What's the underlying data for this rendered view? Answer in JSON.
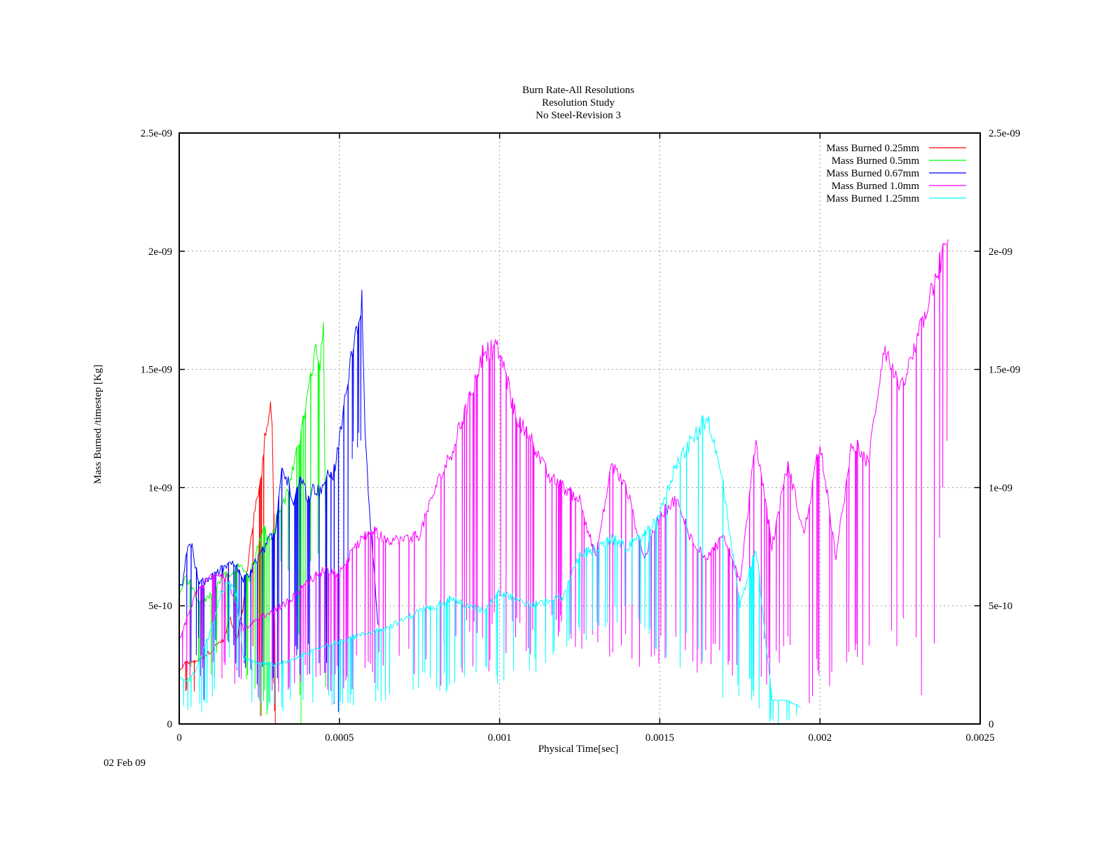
{
  "chart_data": {
    "type": "line",
    "title": [
      "Burn Rate-All Resolutions",
      "Resolution Study",
      "No Steel-Revision 3"
    ],
    "xlabel": "Physical Time[sec]",
    "ylabel": "Mass Burned /timestep  [Kg]",
    "ylabel_color": "#ff0000",
    "xlim": [
      0,
      0.0025
    ],
    "ylim": [
      0,
      2.5e-09
    ],
    "x_ticks": [
      "0",
      "0.0005",
      "0.001",
      "0.0015",
      "0.002",
      "0.0025"
    ],
    "y_ticks": [
      "0",
      "5e-10",
      "1e-09",
      "1.5e-09",
      "2e-09",
      "2.5e-09"
    ],
    "grid": true,
    "legend_position": "top-right",
    "series": [
      {
        "name": "Mass Burned 0.25mm",
        "color": "#ff0000",
        "x": [
          0,
          2e-05,
          4e-05,
          6e-05,
          8e-05,
          0.0001,
          0.00012,
          0.00014,
          0.00016,
          0.00018,
          0.0002,
          0.00022,
          0.00024,
          0.00026,
          0.00027,
          0.00028,
          0.000285,
          0.00029,
          0.000295,
          0.0003
        ],
        "y": [
          2.2e-10,
          2.6e-10,
          2.6e-10,
          2.7e-10,
          2.9e-10,
          3.1e-10,
          3.4e-10,
          3.6e-10,
          4.5e-10,
          3.6e-10,
          5e-10,
          7.5e-10,
          9.3e-10,
          1.1e-09,
          1.25e-09,
          1.3e-09,
          1.38e-09,
          1.25e-09,
          9e-10,
          0
        ],
        "spike_min": [
          3e-11,
          1.2e-10,
          1e-10,
          2e-10,
          2e-10,
          3e-10,
          3.2e-10,
          3.4e-10,
          3.6e-10,
          4e-10,
          5e-10,
          5e-10,
          0,
          0,
          0,
          0,
          0,
          0,
          0,
          0
        ]
      },
      {
        "name": "Mass Burned 0.5mm",
        "color": "#00ff00",
        "x": [
          0,
          2e-05,
          4e-05,
          6e-05,
          8e-05,
          0.0001,
          0.00012,
          0.00014,
          0.00016,
          0.00018,
          0.0002,
          0.00022,
          0.00024,
          0.00026,
          0.00028,
          0.0003,
          0.00032,
          0.00034,
          0.00036,
          0.00038,
          0.0004,
          0.00042,
          0.00043,
          0.00044,
          0.00045,
          0.00046
        ],
        "y": [
          5.4e-10,
          6.2e-10,
          5.8e-10,
          5.1e-10,
          5.2e-10,
          5.5e-10,
          5.9e-10,
          6.4e-10,
          6.2e-10,
          6.6e-10,
          6.6e-10,
          6.2e-10,
          7.3e-10,
          8.3e-10,
          7.8e-10,
          8.5e-10,
          9.3e-10,
          9.8e-10,
          1.1e-09,
          1.22e-09,
          1.38e-09,
          1.55e-09,
          1.6e-09,
          1.5e-09,
          1.75e-09,
          4e-10
        ],
        "spike_min": [
          1.5e-10,
          1e-10,
          1.5e-10,
          2e-10,
          3e-10,
          2e-10,
          3e-10,
          3e-10,
          3e-10,
          3.5e-10,
          2e-10,
          0,
          0,
          0,
          0,
          5e-10,
          7e-10,
          6e-10,
          5e-10,
          0,
          5e-10,
          6e-10,
          7e-10,
          5e-10,
          4e-10,
          0
        ]
      },
      {
        "name": "Mass Burned 0.67mm",
        "color": "#0000ff",
        "x": [
          0,
          1e-05,
          2e-05,
          3e-05,
          4e-05,
          6e-05,
          8e-05,
          0.0001,
          0.00012,
          0.00014,
          0.00016,
          0.00018,
          0.0002,
          0.00022,
          0.00024,
          0.00026,
          0.00028,
          0.0003,
          0.00032,
          0.00034,
          0.00036,
          0.00038,
          0.0004,
          0.00042,
          0.00044,
          0.00046,
          0.00048,
          0.0005,
          0.00052,
          0.00054,
          0.00055,
          0.00056,
          0.00057,
          0.00058,
          0.0006,
          0.00062
        ],
        "y": [
          5.8e-10,
          6e-10,
          6.9e-10,
          7.8e-10,
          7.5e-10,
          6e-10,
          6e-10,
          6.2e-10,
          6.4e-10,
          6.6e-10,
          6.8e-10,
          6.6e-10,
          6.1e-10,
          6.3e-10,
          6.9e-10,
          7.3e-10,
          7.8e-10,
          8.2e-10,
          1.08e-09,
          1.02e-09,
          9.4e-10,
          1.05e-09,
          9.6e-10,
          1e-09,
          9.8e-10,
          1.05e-09,
          1.05e-09,
          1.2e-09,
          1.4e-09,
          1.6e-09,
          1.65e-09,
          1.7e-09,
          1.82e-09,
          1.2e-09,
          8e-10,
          4.2e-10
        ],
        "spike_min": [
          4.5e-10,
          5e-10,
          4e-10,
          3.5e-10,
          1e-10,
          3e-10,
          4e-11,
          3e-10,
          3.5e-10,
          3.5e-10,
          3e-10,
          1.5e-10,
          2e-10,
          1e-10,
          1.5e-10,
          1.5e-10,
          1e-10,
          1e-10,
          1.5e-10,
          1.5e-10,
          2e-10,
          2e-10,
          2e-10,
          2e-10,
          2e-10,
          1e-10,
          5e-11,
          0,
          0,
          1.1e-09,
          1.2e-09,
          1.1e-09,
          1e-09,
          7e-10,
          5e-10,
          4e-10
        ]
      },
      {
        "name": "Mass Burned 1.0mm",
        "color": "#ff00ff",
        "x": [
          0,
          5e-05,
          0.0001,
          0.00015,
          0.0002,
          0.00025,
          0.0003,
          0.00035,
          0.0004,
          0.00045,
          0.0005,
          0.00055,
          0.0006,
          0.00065,
          0.0007,
          0.00075,
          0.0008,
          0.00085,
          0.0009,
          0.00095,
          0.001,
          0.00105,
          0.0011,
          0.00115,
          0.0012,
          0.00125,
          0.0013,
          0.00135,
          0.0014,
          0.00145,
          0.0015,
          0.00155,
          0.0016,
          0.00165,
          0.0017,
          0.00175,
          0.0018,
          0.00185,
          0.0019,
          0.00195,
          0.002,
          0.00205,
          0.0021,
          0.00215,
          0.0022,
          0.00225,
          0.0023,
          0.00235,
          0.0024
        ],
        "y": [
          3.5e-10,
          5.5e-10,
          6.3e-10,
          6.2e-10,
          4e-10,
          4.5e-10,
          4.8e-10,
          5.3e-10,
          6e-10,
          6.5e-10,
          6.4e-10,
          7.5e-10,
          8.2e-10,
          7.8e-10,
          7.8e-10,
          8e-10,
          1e-09,
          1.15e-09,
          1.35e-09,
          1.58e-09,
          1.58e-09,
          1.3e-09,
          1.2e-09,
          1.05e-09,
          1e-09,
          9.5e-10,
          7e-10,
          1.1e-09,
          9.8e-10,
          7e-10,
          8.8e-10,
          9.5e-10,
          7.8e-10,
          7e-10,
          8e-10,
          6e-10,
          1.2e-09,
          7.5e-10,
          1.1e-09,
          8e-10,
          1.2e-09,
          7e-10,
          1.2e-09,
          1.1e-09,
          1.6e-09,
          1.4e-09,
          1.6e-09,
          1.85e-09,
          2.05e-09
        ],
        "spike_min": [
          2e-10,
          2e-10,
          1.5e-10,
          1.5e-10,
          1.5e-10,
          1e-10,
          1e-10,
          1.5e-10,
          1.5e-10,
          1.5e-10,
          1.2e-10,
          1.5e-10,
          1.5e-10,
          1.5e-10,
          2e-10,
          1.5e-10,
          1.5e-10,
          1.8e-10,
          1.7e-10,
          1.6e-10,
          2e-10,
          2.5e-10,
          3e-10,
          3.5e-10,
          3e-10,
          3e-10,
          3.5e-10,
          2.5e-10,
          3e-10,
          2e-10,
          2.5e-10,
          3e-10,
          1.8e-10,
          2.5e-10,
          2e-10,
          2e-10,
          2e-10,
          1.5e-10,
          2e-10,
          0,
          0,
          1.5e-10,
          3e-11,
          2e-10,
          2.5e-10,
          2e-10,
          3e-11,
          2e-10,
          1e-09
        ]
      },
      {
        "name": "Mass Burned 1.25mm",
        "color": "#00ffff",
        "x": [
          0,
          2e-05,
          5e-05,
          0.0001,
          0.00013,
          0.00015,
          0.00018,
          0.0002,
          0.00025,
          0.0003,
          0.00035,
          0.0004,
          0.00045,
          0.0005,
          0.00055,
          0.0006,
          0.00065,
          0.0007,
          0.00075,
          0.0008,
          0.00085,
          0.0009,
          0.00095,
          0.001,
          0.00105,
          0.0011,
          0.00115,
          0.0012,
          0.00125,
          0.0013,
          0.00135,
          0.0014,
          0.00145,
          0.0015,
          0.00155,
          0.0016,
          0.00165,
          0.0017,
          0.00175,
          0.0018,
          0.00185,
          0.0019,
          0.00194
        ],
        "y": [
          2e-10,
          1.8e-10,
          2.2e-10,
          4e-10,
          5.5e-10,
          6e-10,
          5.5e-10,
          2.8e-10,
          2.6e-10,
          2.5e-10,
          2.7e-10,
          3e-10,
          3.3e-10,
          3.5e-10,
          3.7e-10,
          3.9e-10,
          4.1e-10,
          4.4e-10,
          4.8e-10,
          5e-10,
          5.3e-10,
          5e-10,
          4.8e-10,
          5.6e-10,
          5.3e-10,
          5e-10,
          5.2e-10,
          5.4e-10,
          7.2e-10,
          7.4e-10,
          7.8e-10,
          7.5e-10,
          8e-10,
          8.8e-10,
          1.1e-09,
          1.2e-09,
          1.3e-09,
          1e-09,
          5e-10,
          7.5e-10,
          1e-10,
          1e-10,
          7e-11
        ],
        "spike_min": [
          5e-11,
          5e-11,
          3e-11,
          5e-11,
          1.5e-10,
          2e-10,
          2e-10,
          5e-11,
          5e-11,
          5e-11,
          5e-11,
          5e-11,
          5e-11,
          5e-11,
          5e-11,
          5e-11,
          1e-10,
          1e-10,
          1.5e-10,
          1e-10,
          1.5e-10,
          1.5e-10,
          2e-10,
          1.5e-10,
          2e-10,
          2e-10,
          2.5e-10,
          3e-10,
          3.5e-10,
          3.5e-10,
          4e-10,
          4.5e-10,
          3.5e-10,
          3e-10,
          2e-10,
          3e-10,
          1.5e-10,
          5e-11,
          5e-11,
          5e-11,
          0,
          0,
          4e-11
        ]
      }
    ]
  },
  "footer": {
    "date": "02 Feb 09"
  }
}
